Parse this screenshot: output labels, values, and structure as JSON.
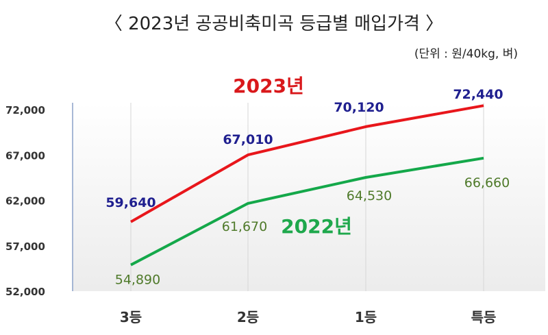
{
  "header": {
    "title": "〈 2023년 공공비축미곡 등급별 매입가격 〉",
    "unit": "(단위 : 원/40kg, 벼)"
  },
  "chart_data": {
    "type": "line",
    "categories": [
      "3등",
      "2등",
      "1등",
      "특등"
    ],
    "yticks": [
      "72,000",
      "67,000",
      "62,000",
      "57,000",
      "52,000"
    ],
    "ylim": [
      52000,
      72000
    ],
    "series": [
      {
        "name": "2023년",
        "color": "#e8161b",
        "values": [
          59640,
          67010,
          70120,
          72440
        ],
        "labels": [
          "59,640",
          "67,010",
          "70,120",
          "72,440"
        ]
      },
      {
        "name": "2022년",
        "color": "#14a84a",
        "values": [
          54890,
          61670,
          64530,
          66660
        ],
        "labels": [
          "54,890",
          "61,670",
          "64,530",
          "66,660"
        ]
      }
    ]
  }
}
